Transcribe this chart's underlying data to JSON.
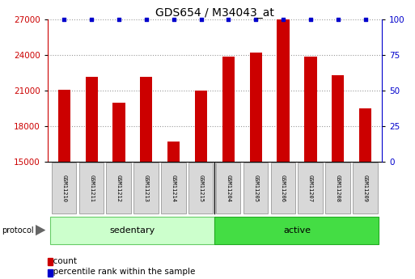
{
  "title": "GDS654 / M34043_at",
  "samples": [
    "GSM11210",
    "GSM11211",
    "GSM11212",
    "GSM11213",
    "GSM11214",
    "GSM11215",
    "GSM11204",
    "GSM11205",
    "GSM11206",
    "GSM11207",
    "GSM11208",
    "GSM11209"
  ],
  "counts": [
    21100,
    22200,
    20000,
    22200,
    16700,
    21000,
    23900,
    24200,
    27000,
    23900,
    22300,
    19500
  ],
  "groups": [
    {
      "label": "sedentary",
      "start": 0,
      "end": 6,
      "color": "#ccffcc",
      "edge": "#66cc66"
    },
    {
      "label": "active",
      "start": 6,
      "end": 12,
      "color": "#44dd44",
      "edge": "#22aa22"
    }
  ],
  "ylim_left": [
    15000,
    27000
  ],
  "ylim_right": [
    0,
    100
  ],
  "yticks_left": [
    15000,
    18000,
    21000,
    24000,
    27000
  ],
  "yticks_right": [
    0,
    25,
    50,
    75,
    100
  ],
  "bar_color": "#cc0000",
  "dot_color": "#0000cc",
  "bg_color": "#ffffff",
  "title_fontsize": 10,
  "tick_fontsize": 7.5,
  "protocol_label": "protocol",
  "legend_count_label": "count",
  "legend_percentile_label": "percentile rank within the sample",
  "dot_y_value": 27000,
  "bar_width": 0.45,
  "xlim": [
    -0.6,
    11.6
  ]
}
